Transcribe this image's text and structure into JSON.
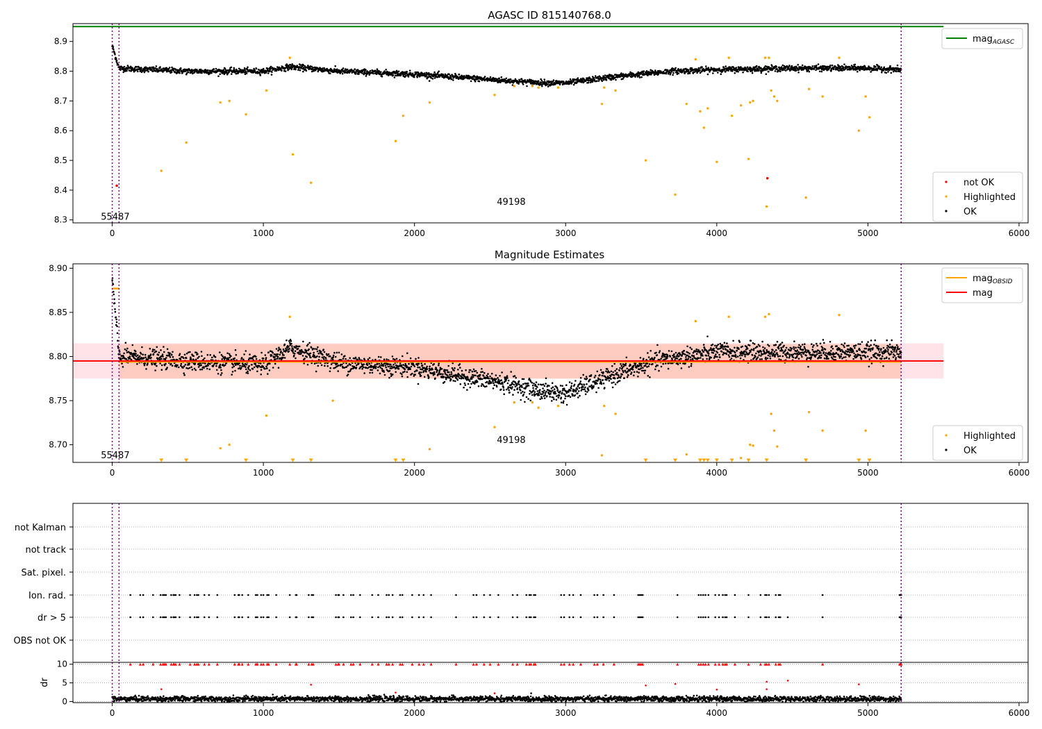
{
  "colors": {
    "ok": "#000000",
    "highlighted": "#ffa500",
    "not_ok": "#ff0000",
    "mag_agasc": "#008000",
    "mag_obsid": "#ffa500",
    "mag": "#ff0000",
    "obsid_boundary": "#800080",
    "band_outer": "#ffc0cb",
    "band_inner": "#ffa07a",
    "grid": "#b0b0b0"
  },
  "chart_data": [
    {
      "type": "scatter",
      "title": "AGASC ID 815140768.0",
      "xlim": [
        -260,
        6060
      ],
      "ylim": [
        8.29,
        8.96
      ],
      "xticks": [
        0,
        1000,
        2000,
        3000,
        4000,
        5000,
        6000
      ],
      "yticks": [
        8.3,
        8.4,
        8.5,
        8.6,
        8.7,
        8.8,
        8.9
      ],
      "xtick_labels": [
        "0",
        "1000",
        "2000",
        "3000",
        "4000",
        "5000",
        "6000"
      ],
      "ytick_labels": [
        "8.3",
        "8.4",
        "8.5",
        "8.6",
        "8.7",
        "8.8",
        "8.9"
      ],
      "mag_agasc": 8.95,
      "mag_agasc_x": [
        -260,
        5500
      ],
      "obsid_boundaries": [
        0,
        45,
        5220
      ],
      "obsid_labels": [
        {
          "text": "55487",
          "x": 20,
          "y": 8.31
        },
        {
          "text": "49198",
          "x": 2640,
          "y": 8.36
        }
      ],
      "ok_trend": [
        {
          "x": 0,
          "y": 8.885
        },
        {
          "x": 45,
          "y": 8.81
        },
        {
          "x": 500,
          "y": 8.8
        },
        {
          "x": 1000,
          "y": 8.8
        },
        {
          "x": 1180,
          "y": 8.815
        },
        {
          "x": 1500,
          "y": 8.8
        },
        {
          "x": 2000,
          "y": 8.79
        },
        {
          "x": 2500,
          "y": 8.772
        },
        {
          "x": 2800,
          "y": 8.762
        },
        {
          "x": 3000,
          "y": 8.76
        },
        {
          "x": 3300,
          "y": 8.78
        },
        {
          "x": 3700,
          "y": 8.8
        },
        {
          "x": 4000,
          "y": 8.805
        },
        {
          "x": 4500,
          "y": 8.81
        },
        {
          "x": 5000,
          "y": 8.81
        },
        {
          "x": 5220,
          "y": 8.805
        }
      ],
      "ok_scatter": 0.008,
      "ok_count": 2600,
      "highlighted": [
        {
          "x": 325,
          "y": 8.465
        },
        {
          "x": 490,
          "y": 8.56
        },
        {
          "x": 715,
          "y": 8.695
        },
        {
          "x": 775,
          "y": 8.7
        },
        {
          "x": 885,
          "y": 8.655
        },
        {
          "x": 1020,
          "y": 8.735
        },
        {
          "x": 1175,
          "y": 8.845
        },
        {
          "x": 1195,
          "y": 8.52
        },
        {
          "x": 1315,
          "y": 8.425
        },
        {
          "x": 1875,
          "y": 8.565
        },
        {
          "x": 1925,
          "y": 8.65
        },
        {
          "x": 2100,
          "y": 8.695
        },
        {
          "x": 2530,
          "y": 8.72
        },
        {
          "x": 2660,
          "y": 8.75
        },
        {
          "x": 2780,
          "y": 8.75
        },
        {
          "x": 2820,
          "y": 8.745
        },
        {
          "x": 2950,
          "y": 8.745
        },
        {
          "x": 3240,
          "y": 8.69
        },
        {
          "x": 3255,
          "y": 8.745
        },
        {
          "x": 3330,
          "y": 8.735
        },
        {
          "x": 3530,
          "y": 8.5
        },
        {
          "x": 3725,
          "y": 8.385
        },
        {
          "x": 3800,
          "y": 8.69
        },
        {
          "x": 3860,
          "y": 8.84
        },
        {
          "x": 3890,
          "y": 8.665
        },
        {
          "x": 3915,
          "y": 8.61
        },
        {
          "x": 3940,
          "y": 8.675
        },
        {
          "x": 4000,
          "y": 8.495
        },
        {
          "x": 4080,
          "y": 8.845
        },
        {
          "x": 4100,
          "y": 8.65
        },
        {
          "x": 4160,
          "y": 8.685
        },
        {
          "x": 4210,
          "y": 8.505
        },
        {
          "x": 4220,
          "y": 8.695
        },
        {
          "x": 4240,
          "y": 8.7
        },
        {
          "x": 4320,
          "y": 8.845
        },
        {
          "x": 4330,
          "y": 8.345
        },
        {
          "x": 4345,
          "y": 8.845
        },
        {
          "x": 4360,
          "y": 8.735
        },
        {
          "x": 4380,
          "y": 8.715
        },
        {
          "x": 4400,
          "y": 8.7
        },
        {
          "x": 4590,
          "y": 8.375
        },
        {
          "x": 4610,
          "y": 8.74
        },
        {
          "x": 4700,
          "y": 8.715
        },
        {
          "x": 4810,
          "y": 8.845
        },
        {
          "x": 4940,
          "y": 8.6
        },
        {
          "x": 4985,
          "y": 8.715
        },
        {
          "x": 5010,
          "y": 8.645
        }
      ],
      "not_ok": [
        {
          "x": 30,
          "y": 8.415
        },
        {
          "x": 4335,
          "y": 8.44
        }
      ],
      "legend_upper": [
        {
          "label": "mag",
          "sub": "AGASC",
          "kind": "line",
          "color_key": "mag_agasc"
        }
      ],
      "legend_lower": [
        {
          "label": "not OK",
          "kind": "dot",
          "color_key": "not_ok"
        },
        {
          "label": "Highlighted",
          "kind": "dot",
          "color_key": "highlighted"
        },
        {
          "label": "OK",
          "kind": "dot",
          "color_key": "ok"
        }
      ]
    },
    {
      "type": "scatter",
      "title": "Magnitude Estimates",
      "xlim": [
        -260,
        6060
      ],
      "ylim": [
        8.68,
        8.905
      ],
      "xticks": [
        0,
        1000,
        2000,
        3000,
        4000,
        5000,
        6000
      ],
      "yticks": [
        8.7,
        8.75,
        8.8,
        8.85,
        8.9
      ],
      "xtick_labels": [
        "0",
        "1000",
        "2000",
        "3000",
        "4000",
        "5000",
        "6000"
      ],
      "ytick_labels": [
        "8.70",
        "8.75",
        "8.80",
        "8.85",
        "8.90"
      ],
      "mag": 8.795,
      "mag_x": [
        -260,
        5500
      ],
      "band_outer": [
        8.775,
        8.815
      ],
      "band_inner": [
        8.775,
        8.814
      ],
      "band_x_outer": [
        -260,
        5500
      ],
      "band_x_inner": [
        45,
        5220
      ],
      "mag_obsid": [
        {
          "x0": 0,
          "x1": 45,
          "y": 8.877
        },
        {
          "x0": 45,
          "x1": 5220,
          "y": 8.794
        }
      ],
      "obsid_boundaries": [
        0,
        45,
        5220
      ],
      "obsid_labels": [
        {
          "text": "55487",
          "x": 20,
          "y": 8.688
        },
        {
          "text": "49198",
          "x": 2640,
          "y": 8.705
        }
      ],
      "ok_trend": [
        {
          "x": 0,
          "y": 8.888
        },
        {
          "x": 45,
          "y": 8.8
        },
        {
          "x": 500,
          "y": 8.795
        },
        {
          "x": 1000,
          "y": 8.79
        },
        {
          "x": 1180,
          "y": 8.81
        },
        {
          "x": 1500,
          "y": 8.793
        },
        {
          "x": 2000,
          "y": 8.788
        },
        {
          "x": 2300,
          "y": 8.778
        },
        {
          "x": 2600,
          "y": 8.77
        },
        {
          "x": 2800,
          "y": 8.762
        },
        {
          "x": 3000,
          "y": 8.758
        },
        {
          "x": 3300,
          "y": 8.778
        },
        {
          "x": 3600,
          "y": 8.795
        },
        {
          "x": 4000,
          "y": 8.805
        },
        {
          "x": 4500,
          "y": 8.805
        },
        {
          "x": 5000,
          "y": 8.805
        },
        {
          "x": 5220,
          "y": 8.805
        }
      ],
      "ok_scatter": 0.009,
      "ok_count": 2600,
      "highlighted": [
        {
          "x": 715,
          "y": 8.696
        },
        {
          "x": 775,
          "y": 8.7
        },
        {
          "x": 1020,
          "y": 8.733
        },
        {
          "x": 1175,
          "y": 8.845
        },
        {
          "x": 1460,
          "y": 8.75
        },
        {
          "x": 2100,
          "y": 8.695
        },
        {
          "x": 2530,
          "y": 8.72
        },
        {
          "x": 2660,
          "y": 8.748
        },
        {
          "x": 2780,
          "y": 8.748
        },
        {
          "x": 2820,
          "y": 8.742
        },
        {
          "x": 2950,
          "y": 8.744
        },
        {
          "x": 3240,
          "y": 8.688
        },
        {
          "x": 3255,
          "y": 8.744
        },
        {
          "x": 3330,
          "y": 8.735
        },
        {
          "x": 3800,
          "y": 8.689
        },
        {
          "x": 3860,
          "y": 8.84
        },
        {
          "x": 4080,
          "y": 8.845
        },
        {
          "x": 4160,
          "y": 8.685
        },
        {
          "x": 4220,
          "y": 8.7
        },
        {
          "x": 4240,
          "y": 8.699
        },
        {
          "x": 4320,
          "y": 8.845
        },
        {
          "x": 4345,
          "y": 8.848
        },
        {
          "x": 4360,
          "y": 8.735
        },
        {
          "x": 4380,
          "y": 8.716
        },
        {
          "x": 4400,
          "y": 8.698
        },
        {
          "x": 4610,
          "y": 8.737
        },
        {
          "x": 4700,
          "y": 8.716
        },
        {
          "x": 4810,
          "y": 8.847
        },
        {
          "x": 4985,
          "y": 8.716
        }
      ],
      "lower_limits": [
        325,
        490,
        885,
        1195,
        1315,
        1875,
        1925,
        3530,
        3725,
        3890,
        3915,
        3940,
        4000,
        4100,
        4210,
        4330,
        4590,
        4940,
        5010
      ],
      "lower_limit_y": 8.682,
      "legend_upper": [
        {
          "label": "mag",
          "sub": "OBSID",
          "kind": "line",
          "color_key": "mag_obsid"
        },
        {
          "label": "mag",
          "kind": "line",
          "color_key": "mag"
        }
      ],
      "legend_lower": [
        {
          "label": "Highlighted",
          "kind": "dot",
          "color_key": "highlighted"
        },
        {
          "label": "OK",
          "kind": "dot",
          "color_key": "ok"
        }
      ]
    },
    {
      "type": "scatter",
      "title": "",
      "xlim": [
        -260,
        6060
      ],
      "categories": [
        "not Kalman",
        "not track",
        "Sat. pixel.",
        "Ion. rad.",
        "dr > 5",
        "OBS not OK"
      ],
      "flag_rows": {
        "Ion. rad.": [
          120,
          185,
          205,
          270,
          320,
          335,
          345,
          355,
          390,
          405,
          410,
          420,
          445,
          515,
          545,
          560,
          570,
          610,
          640,
          695,
          810,
          835,
          840,
          860,
          900,
          950,
          960,
          985,
          1000,
          1025,
          1035,
          1085,
          1175,
          1215,
          1220,
          1300,
          1320,
          1330,
          1480,
          1495,
          1500,
          1530,
          1580,
          1595,
          1640,
          1720,
          1760,
          1815,
          1830,
          1855,
          1905,
          1920,
          1985,
          2030,
          2060,
          2110,
          2275,
          2390,
          2410,
          2460,
          2500,
          2555,
          2650,
          2680,
          2740,
          2760,
          2770,
          2790,
          2800,
          2970,
          2990,
          3025,
          3050,
          3100,
          3190,
          3210,
          3250,
          3320,
          3480,
          3490,
          3500,
          3510,
          3740,
          3880,
          3895,
          3910,
          3925,
          3945,
          3990,
          4015,
          4040,
          4055,
          4065,
          4120,
          4210,
          4290,
          4320,
          4330,
          4345,
          4390,
          4410,
          4420,
          4700,
          5210,
          5215,
          5220
        ],
        "dr > 5": [
          120,
          185,
          205,
          270,
          320,
          335,
          345,
          355,
          390,
          405,
          410,
          420,
          445,
          515,
          545,
          560,
          570,
          610,
          640,
          695,
          810,
          835,
          840,
          860,
          900,
          950,
          960,
          985,
          1000,
          1025,
          1035,
          1085,
          1175,
          1215,
          1220,
          1300,
          1320,
          1330,
          1480,
          1495,
          1500,
          1530,
          1580,
          1595,
          1640,
          1720,
          1760,
          1815,
          1830,
          1855,
          1905,
          1920,
          1985,
          2030,
          2060,
          2110,
          2275,
          2390,
          2410,
          2460,
          2500,
          2555,
          2650,
          2680,
          2740,
          2760,
          2770,
          2790,
          2800,
          2970,
          2990,
          3025,
          3050,
          3100,
          3190,
          3210,
          3250,
          3320,
          3480,
          3490,
          3500,
          3510,
          3740,
          3880,
          3895,
          3910,
          3925,
          3945,
          3990,
          4015,
          4040,
          4055,
          4065,
          4120,
          4210,
          4290,
          4320,
          4330,
          4345,
          4390,
          4410,
          4420,
          4470,
          4700,
          5210,
          5215,
          5220
        ]
      },
      "obsid_boundaries": [
        0,
        45,
        5220
      ]
    },
    {
      "type": "scatter",
      "title": "",
      "ylabel": "dr",
      "xlim": [
        -260,
        6060
      ],
      "ylim": [
        -0.3,
        10.5
      ],
      "xticks": [
        0,
        1000,
        2000,
        3000,
        4000,
        5000,
        6000
      ],
      "yticks": [
        0,
        5,
        10
      ],
      "xtick_labels": [
        "0",
        "1000",
        "2000",
        "3000",
        "4000",
        "5000",
        "6000"
      ],
      "ytick_labels": [
        "0",
        "5",
        "10"
      ],
      "dr_baseline": 0.7,
      "dr_count": 2600,
      "capped_value": 10,
      "capped_points": [
        120,
        185,
        205,
        270,
        320,
        335,
        345,
        355,
        390,
        405,
        410,
        420,
        445,
        515,
        545,
        560,
        570,
        610,
        640,
        695,
        810,
        835,
        840,
        860,
        900,
        950,
        960,
        985,
        1000,
        1025,
        1035,
        1085,
        1175,
        1215,
        1220,
        1300,
        1320,
        1330,
        1480,
        1495,
        1500,
        1530,
        1580,
        1595,
        1640,
        1720,
        1760,
        1815,
        1830,
        1855,
        1905,
        1920,
        1985,
        2030,
        2060,
        2110,
        2275,
        2390,
        2410,
        2460,
        2500,
        2555,
        2650,
        2680,
        2740,
        2760,
        2770,
        2790,
        2800,
        2970,
        2990,
        3025,
        3050,
        3100,
        3190,
        3210,
        3250,
        3320,
        3480,
        3490,
        3500,
        3510,
        3740,
        3880,
        3895,
        3910,
        3925,
        3945,
        3990,
        4015,
        4040,
        4055,
        4065,
        4120,
        4210,
        4290,
        4320,
        4330,
        4345,
        4390,
        4410,
        4420,
        4700,
        5210,
        5215,
        5220
      ],
      "moderate_points": [
        {
          "x": 325,
          "y": 3.3
        },
        {
          "x": 1315,
          "y": 4.5
        },
        {
          "x": 3530,
          "y": 4.3
        },
        {
          "x": 3725,
          "y": 4.7
        },
        {
          "x": 4000,
          "y": 3.2
        },
        {
          "x": 4330,
          "y": 5.3
        },
        {
          "x": 4470,
          "y": 5.6
        },
        {
          "x": 4940,
          "y": 4.6
        },
        {
          "x": 4330,
          "y": 3.3
        },
        {
          "x": 2530,
          "y": 2.2
        },
        {
          "x": 1875,
          "y": 2.4
        }
      ],
      "obsid_boundaries": [
        0,
        45,
        5220
      ]
    }
  ]
}
